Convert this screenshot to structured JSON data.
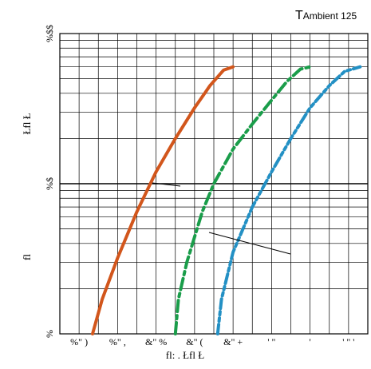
{
  "chart_data": {
    "type": "line",
    "title_prefix": "T",
    "title": "Ambient 125",
    "xlabel": "fl:            .           Łfl  Ł",
    "ylabel_upper": "Łfl   Ł",
    "ylabel_lower": "fl",
    "x_ticks": [
      "%\" )",
      "%\" ,",
      "&\" %",
      "&\" (",
      "&\" +",
      "' \"",
      "'",
      "' \" '"
    ],
    "y_tick_labels": {
      "top": "%$$",
      "middle": "%$",
      "bottom": "%"
    },
    "xlim": [
      0,
      8
    ],
    "ylim": [
      1,
      100
    ],
    "y_scale": "log",
    "grid": true,
    "series": [
      {
        "color": "#d2561c",
        "style": "solid",
        "points": [
          [
            0.85,
            1.0
          ],
          [
            1.1,
            1.7
          ],
          [
            1.5,
            3.2
          ],
          [
            2.0,
            6.5
          ],
          [
            2.5,
            12
          ],
          [
            3.0,
            20
          ],
          [
            3.5,
            32
          ],
          [
            3.9,
            45
          ],
          [
            4.25,
            57
          ],
          [
            4.5,
            60
          ]
        ]
      },
      {
        "color": "#1a9d4a",
        "style": "dashdot",
        "points": [
          [
            3.0,
            1.0
          ],
          [
            3.08,
            1.7
          ],
          [
            3.3,
            3.0
          ],
          [
            3.7,
            6.5
          ],
          [
            4.0,
            10
          ],
          [
            4.5,
            17
          ],
          [
            5.0,
            25
          ],
          [
            5.5,
            36
          ],
          [
            5.9,
            48
          ],
          [
            6.25,
            58
          ],
          [
            6.5,
            60
          ]
        ]
      },
      {
        "color": "#2390c4",
        "style": "dashdotdot",
        "points": [
          [
            4.1,
            1.0
          ],
          [
            4.2,
            1.7
          ],
          [
            4.5,
            3.5
          ],
          [
            5.0,
            7
          ],
          [
            5.5,
            12
          ],
          [
            6.0,
            20
          ],
          [
            6.5,
            32
          ],
          [
            7.0,
            45
          ],
          [
            7.4,
            56
          ],
          [
            7.8,
            60
          ]
        ]
      }
    ]
  }
}
